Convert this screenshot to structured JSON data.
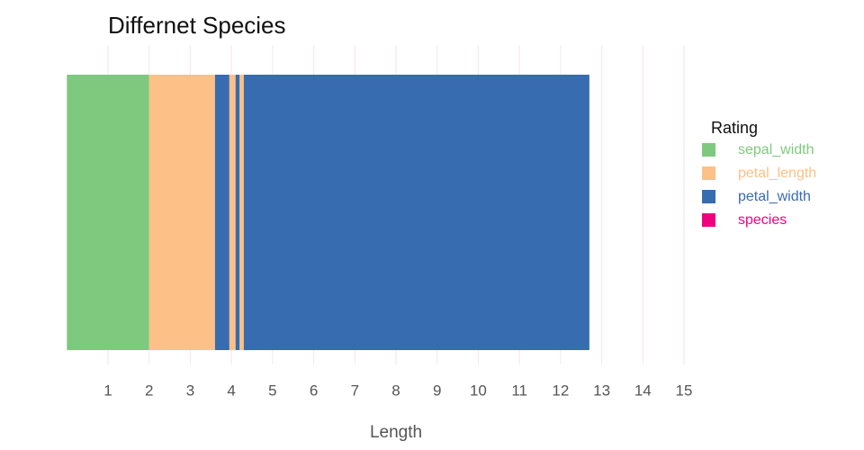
{
  "chart_data": {
    "type": "stacked-bar",
    "title": "Differnet Species",
    "x_label": "Length",
    "legend_title": "Rating",
    "legend": "right",
    "series": [
      {
        "name": "sepal_width",
        "color": "#7fc97f"
      },
      {
        "name": "petal_length",
        "color": "#fdc086"
      },
      {
        "name": "petal_width",
        "color": "#386cb0"
      },
      {
        "name": "species",
        "color": "#f0027f"
      }
    ],
    "stack": [
      {
        "series": "sepal_width",
        "value": 2
      },
      {
        "series": "petal_length",
        "value": 1.6
      },
      {
        "series": "petal_width",
        "value": 0.35
      },
      {
        "series": "petal_length",
        "value": 0.15
      },
      {
        "series": "petal_width",
        "value": 0.1
      },
      {
        "series": "petal_length",
        "value": 0.1
      },
      {
        "series": "petal_width",
        "value": 8.4
      }
    ],
    "xlim": [
      0,
      15
    ],
    "xticks": [
      1,
      2,
      3,
      4,
      5,
      6,
      7,
      8,
      9,
      10,
      11,
      12,
      13,
      14,
      15
    ],
    "grid": true
  }
}
